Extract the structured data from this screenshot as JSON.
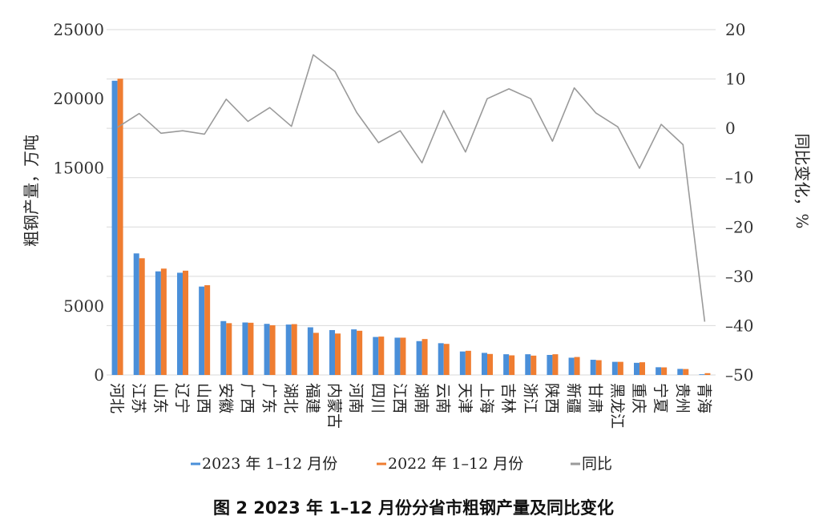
{
  "chart_data": {
    "type": "bar",
    "caption": "图 2    2023 年 1–12 月份分省市粗钢产量及同比变化",
    "ylabel_left": "粗钢产量，万吨",
    "ylabel_right": "同比变化，%",
    "ylim_left": [
      0,
      25000
    ],
    "ylim_right": [
      -50,
      20
    ],
    "yticks_left": [
      "0",
      "5000",
      "15000",
      "20000",
      "25000"
    ],
    "yticks_right": [
      "20",
      "10",
      "0",
      "–10",
      "–20",
      "–30",
      "–40",
      "–50"
    ],
    "grid": "horizontal",
    "legend_position": "bottom",
    "categories": [
      "河北",
      "江苏",
      "山东",
      "辽宁",
      "山西",
      "安徽",
      "广西",
      "广东",
      "湖北",
      "福建",
      "内蒙古",
      "河南",
      "四川",
      "江西",
      "湖南",
      "云南",
      "天津",
      "上海",
      "吉林",
      "浙江",
      "陕西",
      "新疆",
      "甘肃",
      "黑龙江",
      "重庆",
      "宁夏",
      "贵州",
      "青海"
    ],
    "series": [
      {
        "name": "2023 年 1–12 月份",
        "kind": "bar",
        "color": "#4a8fd9",
        "values": [
          21300,
          8800,
          7500,
          7400,
          6400,
          3900,
          3800,
          3700,
          3650,
          3450,
          3250,
          3300,
          2750,
          2700,
          2450,
          2300,
          1700,
          1600,
          1500,
          1500,
          1450,
          1250,
          1100,
          950,
          880,
          560,
          440,
          50
        ]
      },
      {
        "name": "2022 年 1–12 月份",
        "kind": "bar",
        "color": "#ef7d31",
        "values": [
          21450,
          8450,
          7700,
          7550,
          6500,
          3750,
          3780,
          3600,
          3680,
          3050,
          3000,
          3200,
          2780,
          2700,
          2600,
          2250,
          1750,
          1520,
          1420,
          1400,
          1500,
          1300,
          1070,
          950,
          920,
          550,
          430,
          130
        ]
      },
      {
        "name": "同比",
        "kind": "line",
        "color": "#9a9a9a",
        "values": [
          0.2,
          3,
          -1,
          -0.5,
          -1.2,
          5.9,
          1.4,
          4.2,
          0.4,
          14.9,
          11.5,
          3.2,
          -2.9,
          -0.5,
          -7,
          3.6,
          -4.8,
          6,
          8,
          6,
          -2.6,
          8.2,
          3.1,
          0.3,
          -8.1,
          0.8,
          -3.3,
          -39.2
        ]
      }
    ]
  }
}
